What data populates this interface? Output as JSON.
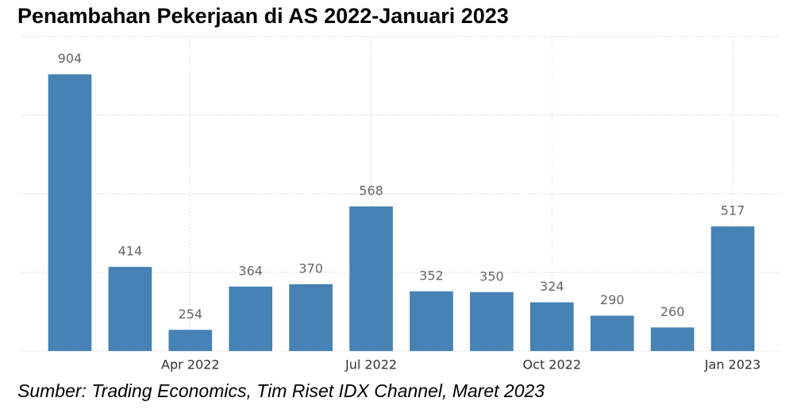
{
  "chart_data": {
    "type": "bar",
    "title": "Penambahan Pekerjaan di AS 2022-Januari 2023",
    "source": "Sumber: Trading Economics, Tim Riset IDX Channel, Maret 2023",
    "categories": [
      null,
      null,
      "Apr 2022",
      null,
      null,
      "Jul 2022",
      null,
      null,
      "Oct 2022",
      null,
      null,
      "Jan 2023"
    ],
    "values": [
      904,
      414,
      254,
      364,
      370,
      568,
      352,
      350,
      324,
      290,
      260,
      517
    ],
    "color": "#4682b4",
    "ylim": [
      200,
      1000
    ],
    "yticks": [
      200,
      400,
      600,
      800,
      1000
    ],
    "grid": true
  }
}
